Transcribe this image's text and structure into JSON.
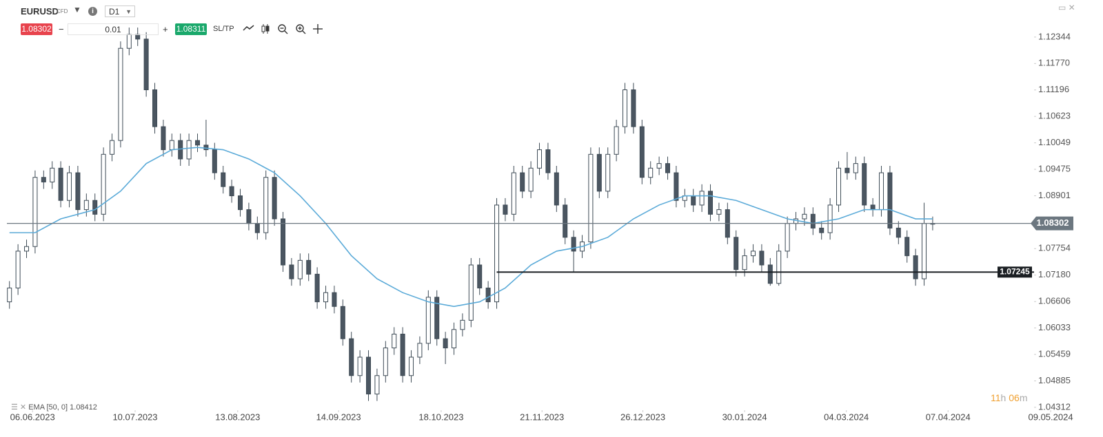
{
  "toolbar": {
    "symbol": "EURUSD",
    "symbol_type": "CFD",
    "interval": "D1",
    "sell": "1.08302",
    "minus": "−",
    "volume": "0.01",
    "plus": "+",
    "buy": "1.08311",
    "sltp": "SL/TP"
  },
  "timer": [
    "11",
    "h",
    "06",
    "m"
  ],
  "chart_data": {
    "type": "candlestick",
    "up_color": "#ffffff",
    "down_color": "#4b5661",
    "edge_color": "#3d4a55",
    "xlim": [
      -0.3,
      122.2
    ],
    "ylim": [
      1.0425,
      1.127
    ],
    "yticks": [
      1.12344,
      {
        "value": 1.1177,
        "label": "1.11770"
      },
      1.11196,
      1.10623,
      1.10049,
      1.09475,
      1.08901,
      1.07754,
      {
        "value": 1.0718,
        "label": "1.07180"
      },
      1.06606,
      1.06033,
      1.05459,
      1.04885,
      1.04312
    ],
    "xticks": [
      {
        "value": 2.7,
        "label": "06.06.2023"
      },
      {
        "value": 14.7,
        "label": "10.07.2023"
      },
      {
        "value": 26.7,
        "label": "13.08.2023"
      },
      {
        "value": 38.5,
        "label": "14.09.2023"
      },
      {
        "value": 50.5,
        "label": "18.10.2023"
      },
      {
        "value": 62.3,
        "label": "21.11.2023"
      },
      {
        "value": 74.1,
        "label": "26.12.2023"
      },
      {
        "value": 86,
        "label": "30.01.2024"
      },
      {
        "value": 97.9,
        "label": "04.03.2024"
      },
      {
        "value": 109.8,
        "label": "07.04.2024"
      },
      {
        "value": 121.8,
        "label": "09.05.2024"
      }
    ],
    "candles": [
      [
        1.066,
        1.0705,
        1.0645,
        1.069
      ],
      [
        1.069,
        1.0785,
        1.0675,
        1.077
      ],
      [
        1.077,
        1.0795,
        1.0755,
        1.078
      ],
      [
        1.078,
        1.0945,
        1.0765,
        1.093
      ],
      [
        1.093,
        1.0945,
        1.0905,
        1.092
      ],
      [
        1.092,
        1.0965,
        1.0905,
        1.095
      ],
      [
        1.095,
        1.0965,
        1.0865,
        1.088
      ],
      [
        1.088,
        1.0955,
        1.0865,
        1.094
      ],
      [
        1.094,
        1.0955,
        1.0845,
        1.086
      ],
      [
        1.086,
        1.0895,
        1.0845,
        1.088
      ],
      [
        1.088,
        1.0895,
        1.0835,
        1.085
      ],
      [
        1.085,
        1.0995,
        1.0835,
        1.098
      ],
      [
        1.098,
        1.1025,
        1.0965,
        1.101
      ],
      [
        1.101,
        1.1225,
        1.0995,
        1.121
      ],
      [
        1.121,
        1.1255,
        1.1195,
        1.124
      ],
      [
        1.124,
        1.1255,
        1.1215,
        1.123
      ],
      [
        1.123,
        1.1245,
        1.1105,
        1.112
      ],
      [
        1.112,
        1.1135,
        1.1025,
        1.104
      ],
      [
        1.104,
        1.1055,
        1.0975,
        1.099
      ],
      [
        1.099,
        1.1025,
        1.0975,
        1.101
      ],
      [
        1.101,
        1.1025,
        1.0955,
        1.097
      ],
      [
        1.097,
        1.1025,
        1.0955,
        1.101
      ],
      [
        1.101,
        1.1025,
        1.0985,
        1.1
      ],
      [
        1.1,
        1.1055,
        1.0975,
        1.099
      ],
      [
        1.099,
        1.1005,
        1.0925,
        1.094
      ],
      [
        1.094,
        1.0955,
        1.0895,
        1.091
      ],
      [
        1.091,
        1.0925,
        1.0875,
        1.089
      ],
      [
        1.089,
        1.0905,
        1.0845,
        1.086
      ],
      [
        1.086,
        1.0875,
        1.0815,
        1.083
      ],
      [
        1.083,
        1.0845,
        1.0795,
        1.081
      ],
      [
        1.081,
        1.0945,
        1.0795,
        1.093
      ],
      [
        1.093,
        1.0945,
        1.0825,
        1.084
      ],
      [
        1.084,
        1.0855,
        1.0725,
        1.074
      ],
      [
        1.074,
        1.0755,
        1.0695,
        1.071
      ],
      [
        1.071,
        1.0765,
        1.0695,
        1.075
      ],
      [
        1.075,
        1.0765,
        1.0705,
        1.072
      ],
      [
        1.072,
        1.0735,
        1.0645,
        1.066
      ],
      [
        1.066,
        1.0695,
        1.0645,
        1.068
      ],
      [
        1.068,
        1.0695,
        1.0635,
        1.065
      ],
      [
        1.065,
        1.0665,
        1.0565,
        1.058
      ],
      [
        1.058,
        1.0595,
        1.0485,
        1.05
      ],
      [
        1.05,
        1.0555,
        1.0485,
        1.054
      ],
      [
        1.054,
        1.0555,
        1.0445,
        1.046
      ],
      [
        1.046,
        1.0515,
        1.0445,
        1.05
      ],
      [
        1.05,
        1.0575,
        1.0485,
        1.056
      ],
      [
        1.056,
        1.0605,
        1.0545,
        1.059
      ],
      [
        1.059,
        1.0605,
        1.0485,
        1.05
      ],
      [
        1.05,
        1.0555,
        1.0485,
        1.054
      ],
      [
        1.054,
        1.0585,
        1.0525,
        1.057
      ],
      [
        1.057,
        1.0685,
        1.0555,
        1.067
      ],
      [
        1.067,
        1.0685,
        1.0565,
        1.058
      ],
      [
        1.058,
        1.0595,
        1.0525,
        1.056
      ],
      [
        1.056,
        1.0615,
        1.0545,
        1.06
      ],
      [
        1.06,
        1.0635,
        1.0585,
        1.062
      ],
      [
        1.062,
        1.0755,
        1.0605,
        1.074
      ],
      [
        1.074,
        1.0755,
        1.0675,
        1.069
      ],
      [
        1.069,
        1.0705,
        1.0645,
        1.066
      ],
      [
        1.066,
        1.0885,
        1.0645,
        1.087
      ],
      [
        1.087,
        1.0885,
        1.0835,
        1.085
      ],
      [
        1.085,
        1.0955,
        1.0835,
        1.094
      ],
      [
        1.094,
        1.0955,
        1.0885,
        1.09
      ],
      [
        1.09,
        1.0965,
        1.0885,
        1.095
      ],
      [
        1.095,
        1.1005,
        1.0935,
        1.099
      ],
      [
        1.099,
        1.1005,
        1.0925,
        1.094
      ],
      [
        1.094,
        1.0955,
        1.0855,
        1.087
      ],
      [
        1.087,
        1.0885,
        1.0785,
        1.08
      ],
      [
        1.08,
        1.0815,
        1.0725,
        1.077
      ],
      [
        1.077,
        1.0805,
        1.0755,
        1.079
      ],
      [
        1.079,
        1.0995,
        1.0775,
        1.098
      ],
      [
        1.098,
        1.0995,
        1.0885,
        1.09
      ],
      [
        1.09,
        1.0995,
        1.0885,
        1.098
      ],
      [
        1.098,
        1.1055,
        1.0965,
        1.104
      ],
      [
        1.104,
        1.1135,
        1.1025,
        1.112
      ],
      [
        1.112,
        1.1135,
        1.1025,
        1.104
      ],
      [
        1.104,
        1.1055,
        1.0915,
        1.093
      ],
      [
        1.093,
        1.0965,
        1.0915,
        1.095
      ],
      [
        1.095,
        1.0975,
        1.0935,
        1.096
      ],
      [
        1.096,
        1.0975,
        1.0925,
        1.094
      ],
      [
        1.094,
        1.0955,
        1.0865,
        1.088
      ],
      [
        1.088,
        1.0905,
        1.0865,
        1.089
      ],
      [
        1.089,
        1.0905,
        1.0855,
        1.087
      ],
      [
        1.087,
        1.0915,
        1.0855,
        1.09
      ],
      [
        1.09,
        1.0915,
        1.0835,
        1.085
      ],
      [
        1.085,
        1.0875,
        1.0835,
        1.086
      ],
      [
        1.086,
        1.0875,
        1.0785,
        1.08
      ],
      [
        1.08,
        1.0815,
        1.0715,
        1.073
      ],
      [
        1.073,
        1.0775,
        1.0715,
        1.076
      ],
      [
        1.076,
        1.0785,
        1.0745,
        1.077
      ],
      [
        1.077,
        1.0785,
        1.0725,
        1.074
      ],
      [
        1.074,
        1.0755,
        1.0695,
        1.07
      ],
      [
        1.07,
        1.0785,
        1.0695,
        1.077
      ],
      [
        1.077,
        1.0845,
        1.0755,
        1.083
      ],
      [
        1.083,
        1.0855,
        1.0815,
        1.084
      ],
      [
        1.084,
        1.0865,
        1.0825,
        1.085
      ],
      [
        1.085,
        1.0865,
        1.0805,
        1.082
      ],
      [
        1.082,
        1.0835,
        1.0795,
        1.081
      ],
      [
        1.081,
        1.0885,
        1.0795,
        1.087
      ],
      [
        1.087,
        1.0965,
        1.0855,
        1.095
      ],
      [
        1.095,
        1.0985,
        1.0925,
        1.094
      ],
      [
        1.094,
        1.0975,
        1.0925,
        1.096
      ],
      [
        1.096,
        1.0975,
        1.0855,
        1.087
      ],
      [
        1.087,
        1.0885,
        1.0845,
        1.086
      ],
      [
        1.086,
        1.0955,
        1.0845,
        1.094
      ],
      [
        1.094,
        1.0955,
        1.0805,
        1.082
      ],
      [
        1.082,
        1.0835,
        1.0785,
        1.08
      ],
      [
        1.08,
        1.0815,
        1.0745,
        1.076
      ],
      [
        1.076,
        1.0775,
        1.0695,
        1.071
      ],
      [
        1.071,
        1.0875,
        1.0695,
        1.083
      ],
      [
        1.083,
        1.0845,
        1.0815,
        1.083
      ]
    ],
    "ema": {
      "name": "EMA [50, 0]",
      "last": 1.08412,
      "color": "#5aaad8",
      "x": [
        0,
        3,
        6,
        10,
        13,
        16,
        19,
        22,
        25,
        28,
        31,
        34,
        37,
        40,
        43,
        46,
        49,
        52,
        55,
        58,
        61,
        64,
        67,
        70,
        73,
        76,
        79,
        82,
        85,
        88,
        91,
        94,
        97,
        100,
        103,
        106,
        108
      ],
      "values": [
        1.081,
        1.081,
        1.084,
        1.086,
        1.09,
        1.096,
        1.099,
        1.0995,
        1.099,
        1.097,
        1.094,
        1.089,
        1.083,
        1.076,
        1.071,
        1.068,
        1.066,
        1.065,
        1.066,
        1.069,
        1.074,
        1.077,
        1.078,
        1.08,
        1.084,
        1.087,
        1.089,
        1.089,
        1.088,
        1.086,
        1.084,
        1.083,
        1.084,
        1.086,
        1.086,
        1.084,
        1.084
      ]
    },
    "price_line": {
      "value": 1.08302,
      "color": "#6c7780"
    },
    "support_line": {
      "value": 1.07245,
      "start": 57,
      "color": "#1b1f23"
    }
  }
}
